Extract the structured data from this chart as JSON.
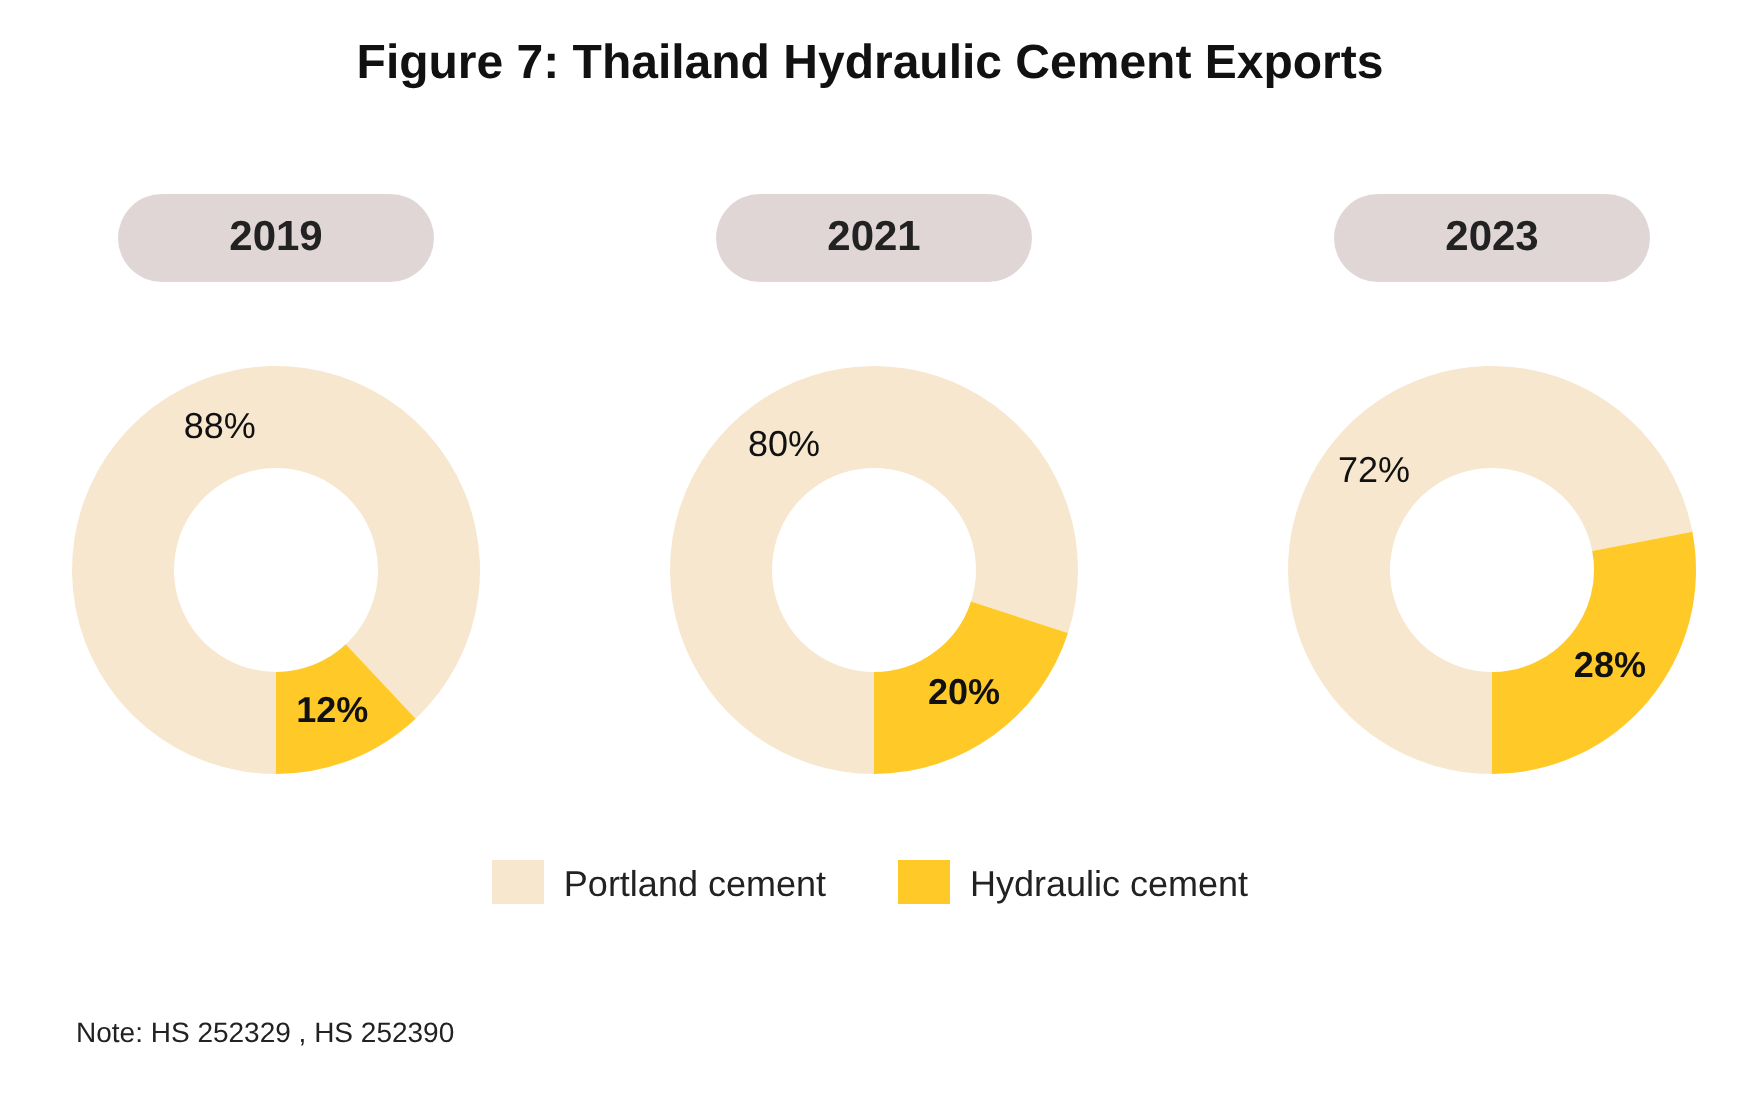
{
  "chart_data": [
    {
      "type": "other",
      "title": "Figure 7: Thailand Hydraulic Cement Exports",
      "annotations": [
        "Note: HS 252329 , HS 252390"
      ]
    },
    {
      "type": "donut",
      "title": "2019",
      "categories": [
        "Portland cement",
        "Hydraulic cement"
      ],
      "values": [
        88,
        12
      ],
      "colors": [
        "#f7e7cf",
        "#ffca28"
      ],
      "value_labels": [
        "88%",
        "12%"
      ],
      "legend": "bottom"
    },
    {
      "type": "donut",
      "title": "2021",
      "categories": [
        null,
        null
      ],
      "values": [
        80,
        20
      ],
      "colors": [
        "#f7e7cf",
        "#ffca28"
      ],
      "value_labels": [
        "80%",
        "20%"
      ]
    },
    {
      "type": "donut",
      "title": "2023",
      "categories": [
        null,
        null
      ],
      "values": [
        72,
        28
      ],
      "colors": [
        "#f7e7cf",
        "#ffca28"
      ],
      "value_labels": [
        "72%",
        "28%"
      ]
    }
  ]
}
